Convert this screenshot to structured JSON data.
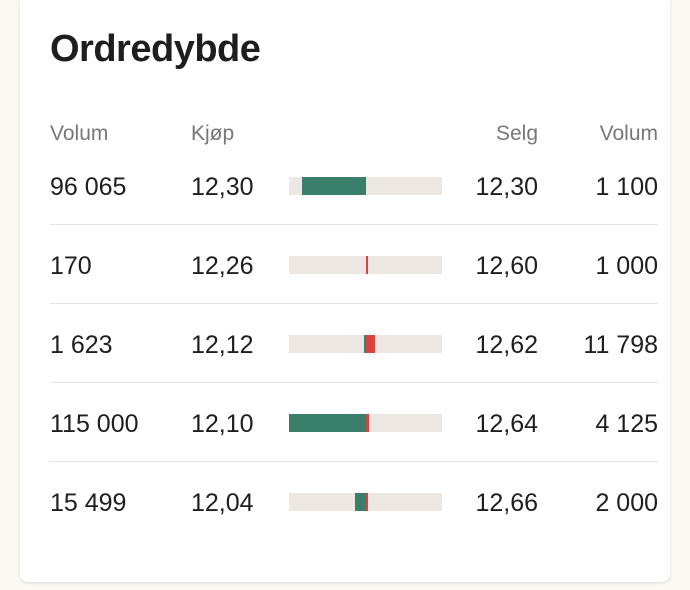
{
  "title": "Ordredybde",
  "headers": {
    "volume_left": "Volum",
    "buy": "Kjøp",
    "sell": "Selg",
    "volume_right": "Volum"
  },
  "colors": {
    "buy": "#3a7f6c",
    "sell": "#d64541",
    "track": "#ece7e3"
  },
  "rows": [
    {
      "buy_volume": "96 065",
      "buy_price": "12,30",
      "sell_price": "12,30",
      "sell_volume": "1 100",
      "buy_share": 0.42,
      "sell_share": 0.0
    },
    {
      "buy_volume": "170",
      "buy_price": "12,26",
      "sell_price": "12,60",
      "sell_volume": "1 000",
      "buy_share": 0.0,
      "sell_share": 0.01
    },
    {
      "buy_volume": "1 623",
      "buy_price": "12,12",
      "sell_price": "12,62",
      "sell_volume": "11 798",
      "buy_share": 0.01,
      "sell_share": 0.06
    },
    {
      "buy_volume": "115 000",
      "buy_price": "12,10",
      "sell_price": "12,64",
      "sell_volume": "4 125",
      "buy_share": 0.5,
      "sell_share": 0.02
    },
    {
      "buy_volume": "15 499",
      "buy_price": "12,04",
      "sell_price": "12,66",
      "sell_volume": "2 000",
      "buy_share": 0.07,
      "sell_share": 0.01
    }
  ]
}
